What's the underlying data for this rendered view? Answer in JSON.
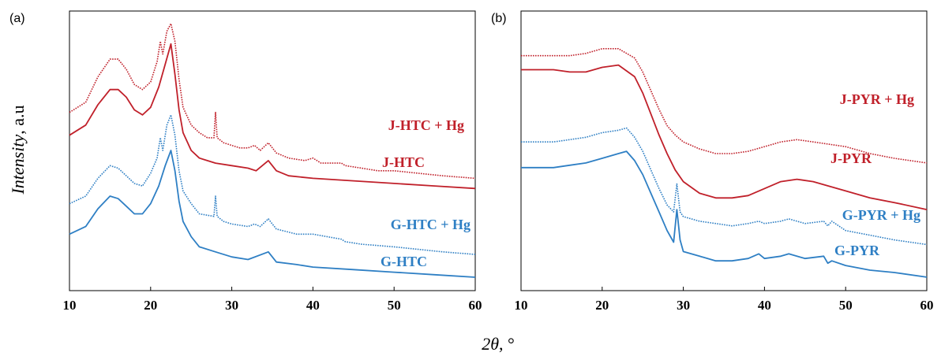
{
  "figure": {
    "ylabel_italic": "Intensity",
    "ylabel_unit": ", a.u",
    "xlabel_symbol": "2θ",
    "xlabel_unit": ", °"
  },
  "colors": {
    "red": "#c0202a",
    "blue": "#2e7fc4"
  },
  "chart_data": [
    {
      "panel": "(a)",
      "type": "line",
      "xlim": [
        10,
        60
      ],
      "xticks": [
        10,
        20,
        30,
        40,
        50,
        60
      ],
      "ylabel": "Intensity, a.u",
      "xlabel": "2θ, °",
      "series": [
        {
          "name": "J-HTC + Hg",
          "color": "#c0202a",
          "style": "dotted",
          "points": [
            [
              10,
              0.65
            ],
            [
              12,
              0.69
            ],
            [
              13.5,
              0.79
            ],
            [
              15,
              0.86
            ],
            [
              16,
              0.86
            ],
            [
              17,
              0.82
            ],
            [
              18,
              0.76
            ],
            [
              19,
              0.74
            ],
            [
              20,
              0.77
            ],
            [
              20.8,
              0.85
            ],
            [
              21.2,
              0.93
            ],
            [
              21.5,
              0.88
            ],
            [
              22,
              0.97
            ],
            [
              22.5,
              1.0
            ],
            [
              23,
              0.93
            ],
            [
              23.5,
              0.78
            ],
            [
              24,
              0.67
            ],
            [
              25,
              0.6
            ],
            [
              26,
              0.57
            ],
            [
              27,
              0.55
            ],
            [
              27.8,
              0.55
            ],
            [
              28,
              0.65
            ],
            [
              28.2,
              0.55
            ],
            [
              29,
              0.53
            ],
            [
              30,
              0.52
            ],
            [
              31,
              0.51
            ],
            [
              32,
              0.51
            ],
            [
              32.8,
              0.52
            ],
            [
              33.5,
              0.5
            ],
            [
              34.5,
              0.53
            ],
            [
              35.5,
              0.49
            ],
            [
              37,
              0.47
            ],
            [
              39,
              0.46
            ],
            [
              40,
              0.47
            ],
            [
              41,
              0.45
            ],
            [
              43.5,
              0.45
            ],
            [
              44,
              0.44
            ],
            [
              46,
              0.43
            ],
            [
              48,
              0.42
            ],
            [
              50,
              0.42
            ],
            [
              53,
              0.41
            ],
            [
              56,
              0.4
            ],
            [
              60,
              0.39
            ]
          ]
        },
        {
          "name": "J-HTC",
          "color": "#c0202a",
          "style": "solid",
          "points": [
            [
              10,
              0.56
            ],
            [
              12,
              0.6
            ],
            [
              13.5,
              0.68
            ],
            [
              15,
              0.74
            ],
            [
              16,
              0.74
            ],
            [
              17,
              0.71
            ],
            [
              18,
              0.66
            ],
            [
              19,
              0.64
            ],
            [
              20,
              0.67
            ],
            [
              21,
              0.75
            ],
            [
              21.8,
              0.84
            ],
            [
              22.5,
              0.92
            ],
            [
              23,
              0.8
            ],
            [
              23.5,
              0.66
            ],
            [
              24,
              0.57
            ],
            [
              25,
              0.5
            ],
            [
              26,
              0.47
            ],
            [
              28,
              0.45
            ],
            [
              30,
              0.44
            ],
            [
              32,
              0.43
            ],
            [
              33,
              0.42
            ],
            [
              34.5,
              0.46
            ],
            [
              35.5,
              0.42
            ],
            [
              37,
              0.4
            ],
            [
              40,
              0.39
            ],
            [
              45,
              0.38
            ],
            [
              50,
              0.37
            ],
            [
              55,
              0.36
            ],
            [
              60,
              0.35
            ]
          ]
        },
        {
          "name": "G-HTC + Hg",
          "color": "#2e7fc4",
          "style": "dotted",
          "points": [
            [
              10,
              0.29
            ],
            [
              12,
              0.32
            ],
            [
              13.5,
              0.39
            ],
            [
              15,
              0.44
            ],
            [
              16,
              0.43
            ],
            [
              17,
              0.4
            ],
            [
              18,
              0.37
            ],
            [
              19,
              0.36
            ],
            [
              20,
              0.41
            ],
            [
              20.8,
              0.47
            ],
            [
              21.2,
              0.55
            ],
            [
              21.5,
              0.5
            ],
            [
              22,
              0.6
            ],
            [
              22.5,
              0.64
            ],
            [
              23,
              0.56
            ],
            [
              23.5,
              0.42
            ],
            [
              24,
              0.34
            ],
            [
              25,
              0.29
            ],
            [
              26,
              0.25
            ],
            [
              27.8,
              0.24
            ],
            [
              28,
              0.32
            ],
            [
              28.2,
              0.24
            ],
            [
              29,
              0.22
            ],
            [
              30,
              0.21
            ],
            [
              32,
              0.2
            ],
            [
              32.8,
              0.21
            ],
            [
              33.5,
              0.2
            ],
            [
              34.5,
              0.23
            ],
            [
              35.5,
              0.19
            ],
            [
              38,
              0.17
            ],
            [
              40,
              0.17
            ],
            [
              43.5,
              0.15
            ],
            [
              44,
              0.14
            ],
            [
              46,
              0.13
            ],
            [
              50,
              0.12
            ],
            [
              53,
              0.11
            ],
            [
              56,
              0.1
            ],
            [
              60,
              0.09
            ]
          ]
        },
        {
          "name": "G-HTC",
          "color": "#2e7fc4",
          "style": "solid",
          "points": [
            [
              10,
              0.17
            ],
            [
              12,
              0.2
            ],
            [
              13.5,
              0.27
            ],
            [
              15,
              0.32
            ],
            [
              16,
              0.31
            ],
            [
              17,
              0.28
            ],
            [
              18,
              0.25
            ],
            [
              19,
              0.25
            ],
            [
              20,
              0.29
            ],
            [
              21,
              0.36
            ],
            [
              21.8,
              0.44
            ],
            [
              22.5,
              0.5
            ],
            [
              23,
              0.42
            ],
            [
              23.5,
              0.3
            ],
            [
              24,
              0.22
            ],
            [
              25,
              0.16
            ],
            [
              26,
              0.12
            ],
            [
              28,
              0.1
            ],
            [
              30,
              0.08
            ],
            [
              32,
              0.07
            ],
            [
              34.5,
              0.1
            ],
            [
              35.5,
              0.06
            ],
            [
              38,
              0.05
            ],
            [
              40,
              0.04
            ],
            [
              45,
              0.03
            ],
            [
              50,
              0.02
            ],
            [
              55,
              0.01
            ],
            [
              60,
              0.0
            ]
          ]
        }
      ]
    },
    {
      "panel": "(b)",
      "type": "line",
      "xlim": [
        10,
        60
      ],
      "xticks": [
        10,
        20,
        30,
        40,
        50,
        60
      ],
      "ylabel": "Intensity, a.u",
      "xlabel": "2θ, °",
      "series": [
        {
          "name": "J-PYR + Hg",
          "color": "#c0202a",
          "style": "dotted",
          "points": [
            [
              10,
              0.93
            ],
            [
              12,
              0.93
            ],
            [
              14,
              0.93
            ],
            [
              16,
              0.93
            ],
            [
              18,
              0.94
            ],
            [
              20,
              0.96
            ],
            [
              22,
              0.96
            ],
            [
              24,
              0.92
            ],
            [
              25,
              0.86
            ],
            [
              26,
              0.78
            ],
            [
              27,
              0.7
            ],
            [
              28,
              0.63
            ],
            [
              29,
              0.59
            ],
            [
              30,
              0.56
            ],
            [
              32,
              0.53
            ],
            [
              34,
              0.51
            ],
            [
              36,
              0.51
            ],
            [
              38,
              0.52
            ],
            [
              40,
              0.54
            ],
            [
              42,
              0.56
            ],
            [
              44,
              0.57
            ],
            [
              46,
              0.56
            ],
            [
              48,
              0.55
            ],
            [
              50,
              0.54
            ],
            [
              53,
              0.51
            ],
            [
              56,
              0.49
            ],
            [
              60,
              0.47
            ]
          ]
        },
        {
          "name": "J-PYR",
          "color": "#c0202a",
          "style": "solid",
          "points": [
            [
              10,
              0.87
            ],
            [
              12,
              0.87
            ],
            [
              14,
              0.87
            ],
            [
              16,
              0.86
            ],
            [
              18,
              0.86
            ],
            [
              20,
              0.88
            ],
            [
              22,
              0.89
            ],
            [
              24,
              0.84
            ],
            [
              25,
              0.77
            ],
            [
              26,
              0.68
            ],
            [
              27,
              0.59
            ],
            [
              28,
              0.51
            ],
            [
              29,
              0.44
            ],
            [
              30,
              0.39
            ],
            [
              32,
              0.34
            ],
            [
              34,
              0.32
            ],
            [
              36,
              0.32
            ],
            [
              38,
              0.33
            ],
            [
              40,
              0.36
            ],
            [
              42,
              0.39
            ],
            [
              44,
              0.4
            ],
            [
              46,
              0.39
            ],
            [
              48,
              0.37
            ],
            [
              50,
              0.35
            ],
            [
              53,
              0.32
            ],
            [
              56,
              0.3
            ],
            [
              60,
              0.27
            ]
          ]
        },
        {
          "name": "G-PYR + Hg",
          "color": "#2e7fc4",
          "style": "dotted",
          "points": [
            [
              10,
              0.56
            ],
            [
              12,
              0.56
            ],
            [
              14,
              0.56
            ],
            [
              16,
              0.57
            ],
            [
              18,
              0.58
            ],
            [
              20,
              0.6
            ],
            [
              22,
              0.61
            ],
            [
              23,
              0.62
            ],
            [
              24,
              0.58
            ],
            [
              25,
              0.52
            ],
            [
              26,
              0.44
            ],
            [
              27,
              0.36
            ],
            [
              28,
              0.29
            ],
            [
              28.8,
              0.26
            ],
            [
              29.2,
              0.38
            ],
            [
              29.6,
              0.26
            ],
            [
              30,
              0.24
            ],
            [
              32,
              0.22
            ],
            [
              34,
              0.21
            ],
            [
              36,
              0.2
            ],
            [
              38,
              0.21
            ],
            [
              39.3,
              0.22
            ],
            [
              40,
              0.21
            ],
            [
              42,
              0.22
            ],
            [
              43,
              0.23
            ],
            [
              45,
              0.21
            ],
            [
              47.3,
              0.22
            ],
            [
              47.8,
              0.2
            ],
            [
              48.3,
              0.22
            ],
            [
              50,
              0.18
            ],
            [
              53,
              0.16
            ],
            [
              56,
              0.14
            ],
            [
              60,
              0.12
            ]
          ]
        },
        {
          "name": "G-PYR",
          "color": "#2e7fc4",
          "style": "solid",
          "points": [
            [
              10,
              0.45
            ],
            [
              12,
              0.45
            ],
            [
              14,
              0.45
            ],
            [
              16,
              0.46
            ],
            [
              18,
              0.47
            ],
            [
              20,
              0.49
            ],
            [
              22,
              0.51
            ],
            [
              23,
              0.52
            ],
            [
              24,
              0.48
            ],
            [
              25,
              0.42
            ],
            [
              26,
              0.34
            ],
            [
              27,
              0.26
            ],
            [
              28,
              0.18
            ],
            [
              28.8,
              0.13
            ],
            [
              29.2,
              0.27
            ],
            [
              29.6,
              0.14
            ],
            [
              30,
              0.09
            ],
            [
              32,
              0.07
            ],
            [
              34,
              0.05
            ],
            [
              36,
              0.05
            ],
            [
              38,
              0.06
            ],
            [
              39.3,
              0.08
            ],
            [
              40,
              0.06
            ],
            [
              42,
              0.07
            ],
            [
              43,
              0.08
            ],
            [
              45,
              0.06
            ],
            [
              47.3,
              0.07
            ],
            [
              47.8,
              0.04
            ],
            [
              48.3,
              0.05
            ],
            [
              50,
              0.03
            ],
            [
              53,
              0.01
            ],
            [
              56,
              0.0
            ],
            [
              60,
              -0.02
            ]
          ]
        }
      ]
    }
  ]
}
